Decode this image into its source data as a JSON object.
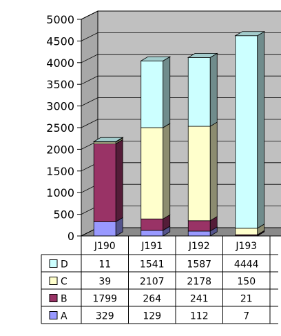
{
  "chart_data": {
    "type": "bar",
    "stacked": true,
    "three_d": true,
    "categories": [
      "J190",
      "J191",
      "J192",
      "J193"
    ],
    "series": [
      {
        "name": "A",
        "values": [
          329,
          129,
          112,
          7
        ],
        "color": "#9999ff"
      },
      {
        "name": "B",
        "values": [
          1799,
          264,
          241,
          21
        ],
        "color": "#993366"
      },
      {
        "name": "C",
        "values": [
          39,
          2107,
          2178,
          150
        ],
        "color": "#ffffcc"
      },
      {
        "name": "D",
        "values": [
          11,
          1541,
          1587,
          4444
        ],
        "color": "#ccffff"
      }
    ],
    "ylim": [
      0,
      5000
    ],
    "yticks": [
      "0",
      "500",
      "1000",
      "1500",
      "2000",
      "2500",
      "3000",
      "3500",
      "4000",
      "4500",
      "5000"
    ],
    "grid": true,
    "legend": "data-table-left",
    "wall_color": "#c0c0c0"
  }
}
